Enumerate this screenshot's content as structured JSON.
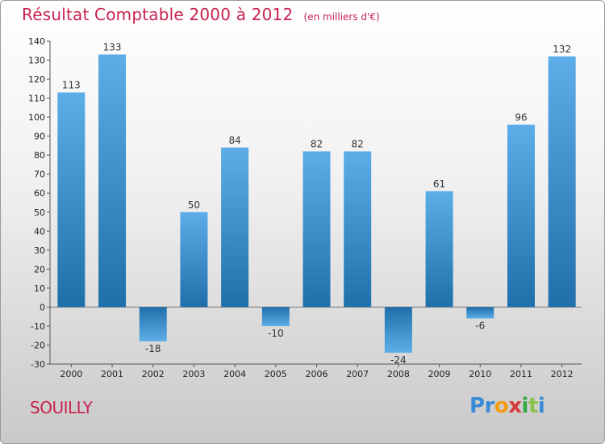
{
  "chart_data": {
    "type": "bar",
    "title": "Résultat Comptable 2000 à 2012",
    "subtitle": "(en milliers d'€)",
    "categories": [
      "2000",
      "2001",
      "2002",
      "2003",
      "2004",
      "2005",
      "2006",
      "2007",
      "2008",
      "2009",
      "2010",
      "2011",
      "2012"
    ],
    "values": [
      113,
      133,
      -18,
      50,
      84,
      -10,
      82,
      82,
      -24,
      61,
      -6,
      96,
      132
    ],
    "ylim": [
      -30,
      140
    ],
    "yticks": [
      -30,
      -20,
      -10,
      0,
      10,
      20,
      30,
      40,
      50,
      60,
      70,
      80,
      90,
      100,
      110,
      120,
      130,
      140
    ],
    "xlabel": "",
    "ylabel": "",
    "grid": false
  },
  "footer": {
    "commune": "SOUILLY",
    "logo_letters": [
      "P",
      "r",
      "o",
      "x",
      "i",
      "t",
      "i"
    ],
    "logo_colors": [
      "#3a8ad8",
      "#3a8ad8",
      "#f39c12",
      "#d63a3a",
      "#36a845",
      "#8bc34a",
      "#3a8ad8"
    ]
  },
  "colors": {
    "bar_light": "#5dade9",
    "bar_dark": "#1f6fab",
    "title": "#c8234f"
  }
}
